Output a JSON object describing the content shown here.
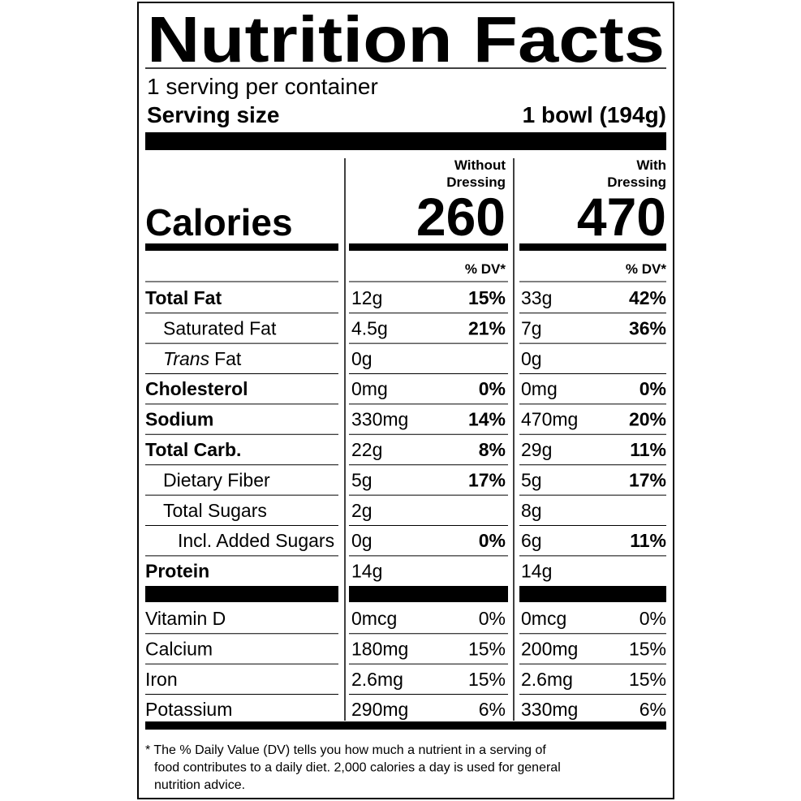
{
  "title": "Nutrition Facts",
  "servings": "1 serving per container",
  "serving_size": {
    "label": "Serving size",
    "value": "1 bowl (194g)"
  },
  "calories_label": "Calories",
  "columns": [
    {
      "heading": [
        "Without",
        "Dressing"
      ],
      "calories": "260",
      "dv_header": "% DV*"
    },
    {
      "heading": [
        "With",
        "Dressing"
      ],
      "calories": "470",
      "dv_header": "% DV*"
    }
  ],
  "nutrients": [
    {
      "label": "Total Fat",
      "bold": true,
      "indent": 0,
      "values": [
        {
          "amount": "12g",
          "dv": "15%"
        },
        {
          "amount": "33g",
          "dv": "42%"
        }
      ]
    },
    {
      "label": "Saturated Fat",
      "bold": false,
      "indent": 1,
      "values": [
        {
          "amount": "4.5g",
          "dv": "21%"
        },
        {
          "amount": "7g",
          "dv": "36%"
        }
      ]
    },
    {
      "label_italic": "Trans",
      "label": "Fat",
      "bold": false,
      "indent": 1,
      "values": [
        {
          "amount": "0g"
        },
        {
          "amount": "0g"
        }
      ]
    },
    {
      "label": "Cholesterol",
      "bold": true,
      "indent": 0,
      "values": [
        {
          "amount": "0mg",
          "dv": "0%"
        },
        {
          "amount": "0mg",
          "dv": "0%"
        }
      ]
    },
    {
      "label": "Sodium",
      "bold": true,
      "indent": 0,
      "values": [
        {
          "amount": "330mg",
          "dv": "14%"
        },
        {
          "amount": "470mg",
          "dv": "20%"
        }
      ]
    },
    {
      "label": "Total Carb.",
      "bold": true,
      "indent": 0,
      "values": [
        {
          "amount": "22g",
          "dv": "8%"
        },
        {
          "amount": "29g",
          "dv": "11%"
        }
      ]
    },
    {
      "label": "Dietary Fiber",
      "bold": false,
      "indent": 1,
      "values": [
        {
          "amount": "5g",
          "dv": "17%"
        },
        {
          "amount": "5g",
          "dv": "17%"
        }
      ]
    },
    {
      "label": "Total Sugars",
      "bold": false,
      "indent": 1,
      "values": [
        {
          "amount": "2g"
        },
        {
          "amount": "8g"
        }
      ]
    },
    {
      "label": "Incl. Added Sugars",
      "bold": false,
      "indent": 2,
      "values": [
        {
          "amount": "0g",
          "dv": "0%"
        },
        {
          "amount": "6g",
          "dv": "11%"
        }
      ]
    },
    {
      "label": "Protein",
      "bold": true,
      "indent": 0,
      "values": [
        {
          "amount": "14g"
        },
        {
          "amount": "14g"
        }
      ]
    }
  ],
  "vitamins": [
    {
      "label": "Vitamin D",
      "values": [
        {
          "amount": "0mcg",
          "dv": "0%"
        },
        {
          "amount": "0mcg",
          "dv": "0%"
        }
      ]
    },
    {
      "label": "Calcium",
      "values": [
        {
          "amount": "180mg",
          "dv": "15%"
        },
        {
          "amount": "200mg",
          "dv": "15%"
        }
      ]
    },
    {
      "label": "Iron",
      "values": [
        {
          "amount": "2.6mg",
          "dv": "15%"
        },
        {
          "amount": "2.6mg",
          "dv": "15%"
        }
      ]
    },
    {
      "label": "Potassium",
      "values": [
        {
          "amount": "290mg",
          "dv": "6%"
        },
        {
          "amount": "330mg",
          "dv": "6%"
        }
      ]
    }
  ],
  "footnote": [
    "* The % Daily Value (DV) tells you how much a nutrient in a serving of",
    "food contributes to a daily diet. 2,000 calories a day is used for general",
    "nutrition advice."
  ]
}
